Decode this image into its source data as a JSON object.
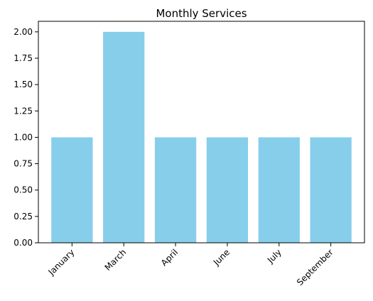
{
  "chart_data": {
    "type": "bar",
    "title": "Monthly Services",
    "xlabel": "",
    "ylabel": "",
    "categories": [
      "January",
      "March",
      "April",
      "June",
      "July",
      "September"
    ],
    "values": [
      1,
      2,
      1,
      1,
      1,
      1
    ],
    "ylim": [
      0,
      2.1
    ],
    "yticks": [
      "0.00",
      "0.25",
      "0.50",
      "0.75",
      "1.00",
      "1.25",
      "1.50",
      "1.75",
      "2.00"
    ],
    "grid": false,
    "bar_color": "#87CEEB"
  }
}
